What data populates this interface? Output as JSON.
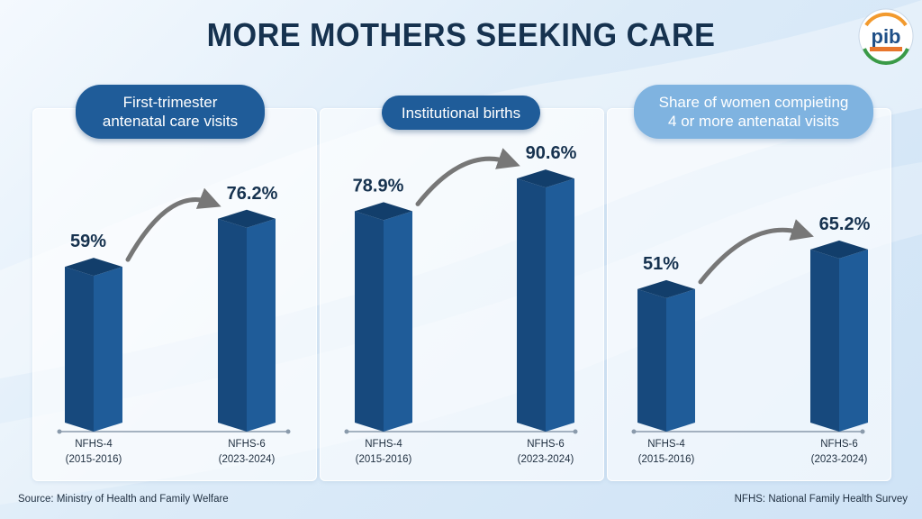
{
  "title": "MORE MOTHERS SEEKING CARE",
  "logo_text": "pib",
  "colors": {
    "bar": "#1f5c99",
    "bar_dark": "#123e6b",
    "arrow": "#777777",
    "title": "#16324f"
  },
  "panels": [
    {
      "pill_line1": "First-trimester",
      "pill_line2": "antenatal care visits"
    },
    {
      "pill_line1": "Institutional births",
      "pill_line2": ""
    },
    {
      "pill_line1": "Share of women compieting",
      "pill_line2": "4 or more antenatal visits"
    }
  ],
  "chart_data": [
    {
      "type": "bar",
      "title": "First-trimester antenatal care visits",
      "categories": [
        [
          "NFHS-4",
          "(2015-2016)"
        ],
        [
          "NFHS-6",
          "(2023-2024)"
        ]
      ],
      "values": [
        59,
        76.2
      ],
      "value_labels": [
        "59%",
        "76.2%"
      ]
    },
    {
      "type": "bar",
      "title": "Institutional births",
      "categories": [
        [
          "NFHS-4",
          "(2015-2016)"
        ],
        [
          "NFHS-6",
          "(2023-2024)"
        ]
      ],
      "values": [
        78.9,
        90.6
      ],
      "value_labels": [
        "78.9%",
        "90.6%"
      ]
    },
    {
      "type": "bar",
      "title": "Share of women compieting 4 or more antenatal visits",
      "categories": [
        [
          "NFHS-4",
          "(2015-2016)"
        ],
        [
          "NFHS-6",
          "(2023-2024)"
        ]
      ],
      "values": [
        51,
        65.2
      ],
      "value_labels": [
        "51%",
        "65.2%"
      ]
    }
  ],
  "footer": {
    "source": "Source: Ministry of Health and Family Welfare",
    "note": "NFHS: National Family Health Survey"
  }
}
